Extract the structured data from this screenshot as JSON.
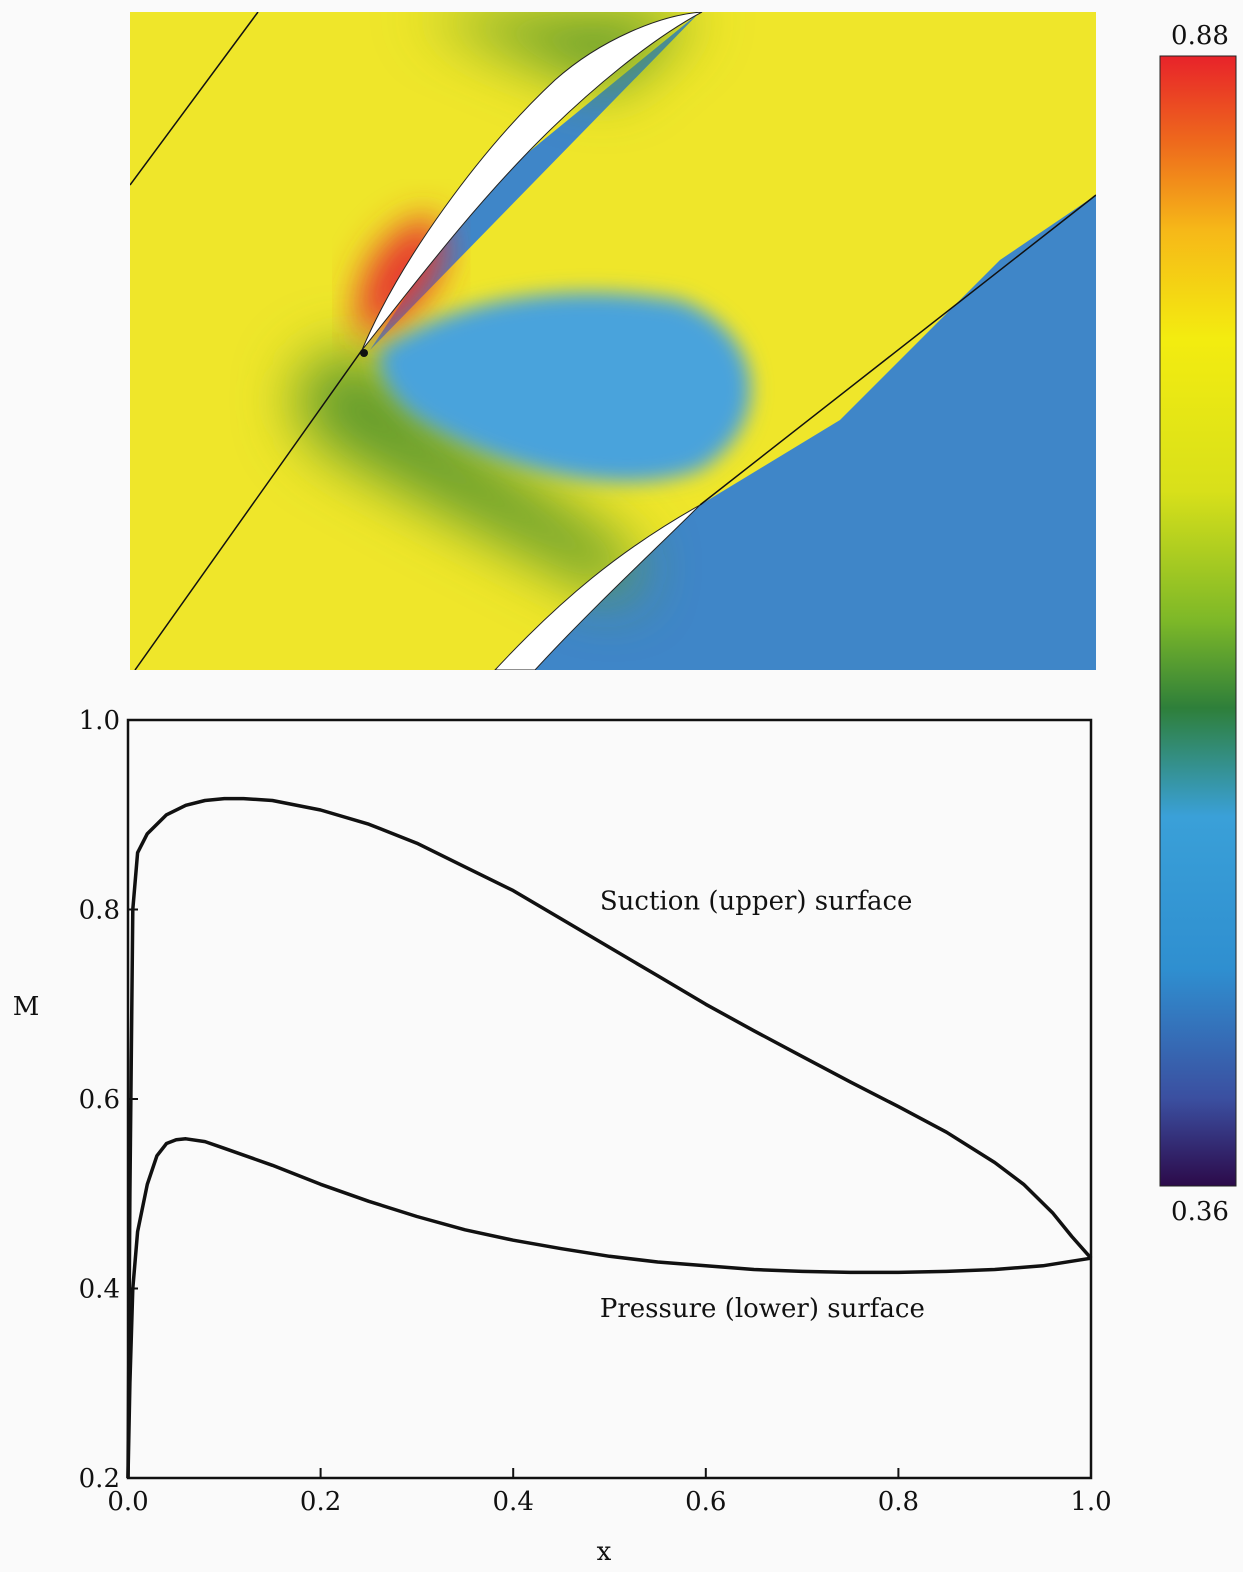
{
  "colorbar": {
    "max_label": "0.88",
    "min_label": "0.36",
    "stops": [
      {
        "value": 0.36,
        "color": "#2c0a4a"
      },
      {
        "value": 0.4,
        "color": "#3b4fa0"
      },
      {
        "value": 0.46,
        "color": "#2f8fd0"
      },
      {
        "value": 0.53,
        "color": "#3aa0d8"
      },
      {
        "value": 0.58,
        "color": "#2e7f3a"
      },
      {
        "value": 0.62,
        "color": "#7db828"
      },
      {
        "value": 0.68,
        "color": "#d8e01a"
      },
      {
        "value": 0.75,
        "color": "#f3ec10"
      },
      {
        "value": 0.8,
        "color": "#f6b818"
      },
      {
        "value": 0.84,
        "color": "#ee6a1c"
      },
      {
        "value": 0.88,
        "color": "#e8232a"
      }
    ]
  },
  "contour": {
    "colors": {
      "yellow": "#efe62a",
      "blue": "#3f86c8",
      "deep_blue": "#3c6fb5",
      "green": "#5e9a2e",
      "red": "#e63a2f",
      "blade": "#ffffff"
    }
  },
  "chart_data": {
    "type": "line",
    "xlabel": "x",
    "ylabel": "M",
    "xlim": [
      0.0,
      1.0
    ],
    "ylim": [
      0.2,
      1.0
    ],
    "xticks": [
      0.0,
      0.2,
      0.4,
      0.6,
      0.8,
      1.0
    ],
    "xtick_labels": [
      "0.0",
      "0.2",
      "0.4",
      "0.6",
      "0.8",
      "1.0"
    ],
    "yticks": [
      0.2,
      0.4,
      0.6,
      0.8,
      1.0
    ],
    "ytick_labels": [
      "0.2",
      "0.4",
      "0.6",
      "0.8",
      "1.0"
    ],
    "grid": false,
    "legend": "none",
    "annotations": [
      {
        "text": "Suction (upper) surface",
        "x": 0.49,
        "y": 0.8
      },
      {
        "text": "Pressure (lower) surface",
        "x": 0.49,
        "y": 0.37
      }
    ],
    "series": [
      {
        "x": [
          0.0,
          0.002,
          0.005,
          0.01,
          0.02,
          0.04,
          0.06,
          0.08,
          0.1,
          0.12,
          0.15,
          0.2,
          0.25,
          0.3,
          0.35,
          0.4,
          0.45,
          0.5,
          0.55,
          0.6,
          0.65,
          0.7,
          0.75,
          0.8,
          0.85,
          0.9,
          0.93,
          0.96,
          0.98,
          1.0
        ],
        "y": [
          0.2,
          0.5,
          0.8,
          0.86,
          0.88,
          0.9,
          0.91,
          0.915,
          0.917,
          0.917,
          0.915,
          0.905,
          0.89,
          0.87,
          0.845,
          0.82,
          0.79,
          0.76,
          0.73,
          0.7,
          0.672,
          0.645,
          0.618,
          0.592,
          0.565,
          0.533,
          0.51,
          0.48,
          0.455,
          0.432
        ]
      },
      {
        "x": [
          0.0,
          0.002,
          0.005,
          0.01,
          0.02,
          0.03,
          0.04,
          0.05,
          0.06,
          0.08,
          0.1,
          0.15,
          0.2,
          0.25,
          0.3,
          0.35,
          0.4,
          0.45,
          0.5,
          0.55,
          0.6,
          0.65,
          0.7,
          0.75,
          0.8,
          0.85,
          0.9,
          0.95,
          1.0
        ],
        "y": [
          0.2,
          0.3,
          0.4,
          0.46,
          0.51,
          0.54,
          0.553,
          0.557,
          0.558,
          0.555,
          0.548,
          0.53,
          0.51,
          0.492,
          0.476,
          0.462,
          0.451,
          0.442,
          0.434,
          0.428,
          0.424,
          0.42,
          0.418,
          0.417,
          0.417,
          0.418,
          0.42,
          0.424,
          0.432
        ]
      }
    ]
  }
}
